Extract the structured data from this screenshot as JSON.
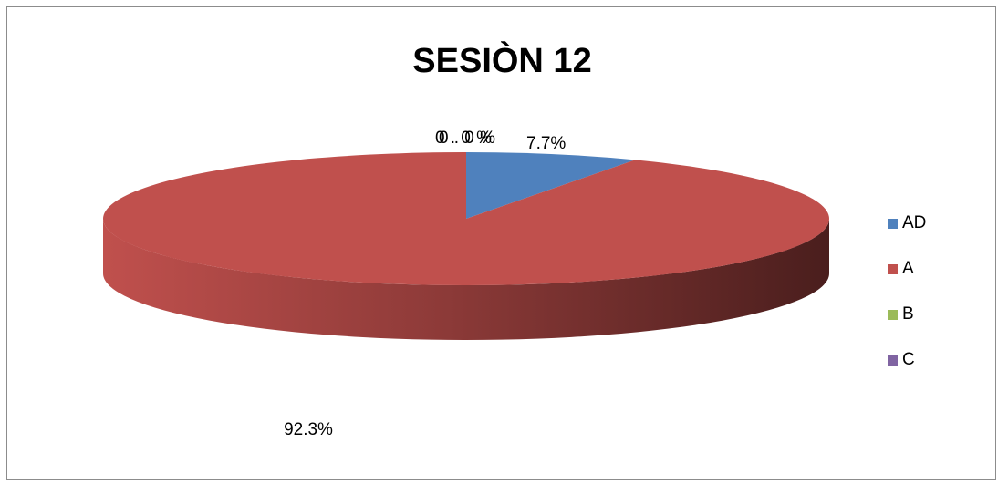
{
  "chart_data": {
    "type": "pie",
    "title": "SESIÒN 12",
    "categories": [
      "AD",
      "A",
      "B",
      "C"
    ],
    "values": [
      7.7,
      92.3,
      0,
      0
    ],
    "data_labels": [
      "7.7%",
      "92.3%",
      "0.0%",
      "0.0%"
    ],
    "colors": [
      "#4f81bd",
      "#c0504d",
      "#9bbb59",
      "#8064a2"
    ],
    "legend_position": "right",
    "style": "3d"
  }
}
